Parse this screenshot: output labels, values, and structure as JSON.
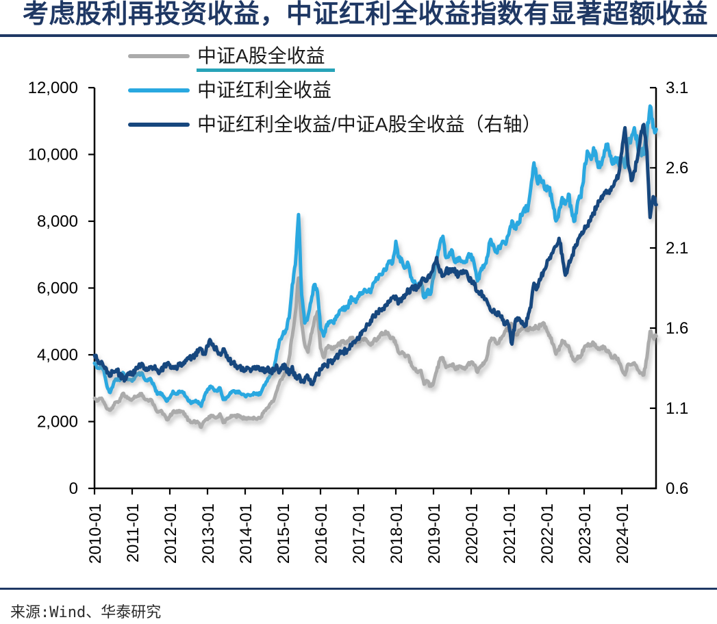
{
  "source": {
    "text": "来源:Wind、华泰研究"
  },
  "colors": {
    "title": "#1f3864",
    "rule": "#1f3864",
    "axis": "#000000",
    "legend_underline": "#27a3b8"
  },
  "chart_data": {
    "type": "line",
    "title": "考虑股利再投资收益，中证红利全收益指数有显著超额收益",
    "grid": false,
    "legend_position": "top-left",
    "x_start": "2010-01",
    "x_end": "2024-12",
    "freq": "monthly",
    "x_tick_labels": [
      "2010-01",
      "2011-01",
      "2012-01",
      "2013-01",
      "2014-01",
      "2015-01",
      "2016-01",
      "2017-01",
      "2018-01",
      "2019-01",
      "2020-01",
      "2021-01",
      "2022-01",
      "2023-01",
      "2024-01"
    ],
    "left_axis": {
      "min": 0,
      "max": 12000,
      "step": 2000,
      "tick_labels": [
        "0",
        "2,000",
        "4,000",
        "6,000",
        "8,000",
        "10,000",
        "12,000"
      ]
    },
    "right_axis": {
      "min": 0.6,
      "max": 3.1,
      "step": 0.5,
      "tick_labels": [
        "0.6",
        "1.1",
        "1.6",
        "2.1",
        "2.6",
        "3.1"
      ]
    },
    "series": [
      {
        "id": "csi-a-share-total-return",
        "name": "中证A股全收益",
        "color": "#ababab",
        "axis": "left",
        "underlined_in_legend": true,
        "values": [
          2700,
          2620,
          2690,
          2580,
          2380,
          2340,
          2480,
          2590,
          2610,
          2840,
          2740,
          2700,
          2660,
          2750,
          2790,
          2840,
          2680,
          2650,
          2660,
          2500,
          2290,
          2320,
          2230,
          2060,
          2150,
          2300,
          2270,
          2330,
          2300,
          2160,
          2040,
          1980,
          2010,
          1970,
          1830,
          2010,
          2060,
          2180,
          2140,
          2120,
          2230,
          1970,
          2060,
          2110,
          2180,
          2150,
          2190,
          2120,
          2080,
          2120,
          2090,
          2100,
          2090,
          2130,
          2310,
          2390,
          2540,
          2610,
          2900,
          3190,
          3340,
          3460,
          3900,
          4560,
          5250,
          6300,
          4950,
          4300,
          4080,
          4620,
          5000,
          5290,
          4200,
          3920,
          4220,
          4240,
          4170,
          4260,
          4310,
          4380,
          4350,
          4410,
          4520,
          4340,
          4380,
          4450,
          4490,
          4400,
          4290,
          4430,
          4480,
          4600,
          4620,
          4660,
          4570,
          4520,
          4310,
          4060,
          4090,
          3940,
          3980,
          3680,
          3580,
          3470,
          3530,
          3120,
          3220,
          3060,
          3160,
          3510,
          3830,
          3910,
          3620,
          3670,
          3720,
          3560,
          3660,
          3610,
          3570,
          3720,
          3780,
          3700,
          3480,
          3660,
          3720,
          3920,
          4420,
          4470,
          4360,
          4410,
          4560,
          4720,
          4770,
          4910,
          4620,
          4680,
          4780,
          4890,
          4730,
          4780,
          4820,
          4800,
          4870,
          4960,
          4760,
          4580,
          4320,
          4020,
          4140,
          4430,
          4320,
          4270,
          3960,
          3810,
          3960,
          3970,
          4210,
          4260,
          4310,
          4360,
          4210,
          4160,
          4260,
          4110,
          4060,
          3910,
          3960,
          3810,
          3560,
          3400,
          3720,
          3710,
          3760,
          3560,
          3450,
          3400,
          3920,
          4700,
          4520,
          4560
        ]
      },
      {
        "id": "csi-dividend-total-return",
        "name": "中证红利全收益",
        "color": "#29a8e0",
        "axis": "left",
        "underlined_in_legend": false,
        "values": [
          3750,
          3600,
          3680,
          3520,
          3050,
          2870,
          3120,
          3270,
          3230,
          3470,
          3310,
          3260,
          3210,
          3360,
          3410,
          3460,
          3270,
          3230,
          3260,
          3070,
          2820,
          2870,
          2760,
          2610,
          2710,
          2910,
          2820,
          2910,
          2900,
          2760,
          2610,
          2560,
          2610,
          2600,
          2460,
          2760,
          2960,
          3060,
          2960,
          2910,
          3010,
          2660,
          2710,
          2810,
          2910,
          2860,
          2910,
          2810,
          2760,
          2810,
          2800,
          2850,
          2810,
          2860,
          3090,
          3210,
          3390,
          3510,
          4000,
          4450,
          4600,
          4750,
          5100,
          6100,
          6700,
          8200,
          5800,
          4950,
          5150,
          5600,
          6100,
          5900,
          4800,
          4560,
          4910,
          5010,
          4960,
          5160,
          5310,
          5410,
          5360,
          5510,
          5710,
          5610,
          5760,
          5860,
          5960,
          5910,
          5860,
          6160,
          6260,
          6410,
          6510,
          6560,
          6810,
          6760,
          7400,
          6910,
          6810,
          6610,
          6710,
          6310,
          6210,
          6010,
          6210,
          5710,
          5910,
          5810,
          6310,
          6810,
          7310,
          7550,
          6910,
          7010,
          7110,
          6760,
          6910,
          6810,
          6760,
          6960,
          7010,
          6710,
          6210,
          6510,
          6610,
          6910,
          7400,
          7310,
          7110,
          7210,
          7400,
          7310,
          7610,
          8010,
          7810,
          7910,
          8210,
          8400,
          8310,
          9000,
          9750,
          9210,
          9310,
          9210,
          8910,
          9010,
          8510,
          8010,
          8310,
          8710,
          8510,
          8810,
          8310,
          8010,
          8610,
          8710,
          9510,
          10100,
          9910,
          10200,
          9810,
          9610,
          9910,
          10300,
          10100,
          9710,
          9910,
          9710,
          9910,
          9610,
          10400,
          10500,
          10800,
          10300,
          10100,
          10000,
          10600,
          11450,
          10800,
          10750
        ]
      },
      {
        "id": "dividend-to-a-share-ratio",
        "name": "中证红利全收益/中证A股全收益（右轴）",
        "color": "#17477e",
        "axis": "right",
        "underlined_in_legend": false,
        "values": [
          1.43,
          1.4,
          1.38,
          1.36,
          1.32,
          1.3,
          1.33,
          1.34,
          1.31,
          1.29,
          1.28,
          1.31,
          1.32,
          1.34,
          1.36,
          1.38,
          1.35,
          1.34,
          1.36,
          1.35,
          1.34,
          1.33,
          1.36,
          1.38,
          1.37,
          1.36,
          1.35,
          1.37,
          1.38,
          1.4,
          1.41,
          1.42,
          1.43,
          1.45,
          1.47,
          1.44,
          1.49,
          1.52,
          1.48,
          1.46,
          1.44,
          1.47,
          1.42,
          1.4,
          1.38,
          1.37,
          1.36,
          1.35,
          1.34,
          1.35,
          1.34,
          1.36,
          1.35,
          1.34,
          1.33,
          1.34,
          1.33,
          1.34,
          1.37,
          1.33,
          1.37,
          1.35,
          1.31,
          1.36,
          1.29,
          1.3,
          1.27,
          1.28,
          1.3,
          1.25,
          1.27,
          1.31,
          1.34,
          1.36,
          1.37,
          1.39,
          1.4,
          1.42,
          1.44,
          1.45,
          1.46,
          1.47,
          1.49,
          1.51,
          1.54,
          1.56,
          1.59,
          1.62,
          1.65,
          1.67,
          1.69,
          1.71,
          1.72,
          1.74,
          1.77,
          1.79,
          1.8,
          1.76,
          1.79,
          1.81,
          1.83,
          1.85,
          1.86,
          1.85,
          1.88,
          1.91,
          1.9,
          1.93,
          1.99,
          2.04,
          1.95,
          1.93,
          1.96,
          1.95,
          1.97,
          1.95,
          1.93,
          1.94,
          1.95,
          1.92,
          1.9,
          1.87,
          1.83,
          1.82,
          1.8,
          1.77,
          1.72,
          1.7,
          1.69,
          1.68,
          1.65,
          1.63,
          1.62,
          1.5,
          1.64,
          1.65,
          1.63,
          1.61,
          1.66,
          1.73,
          1.88,
          1.85,
          1.9,
          1.95,
          1.99,
          2.04,
          2.07,
          2.11,
          2.16,
          2.06,
          1.93,
          1.99,
          2.04,
          2.1,
          2.15,
          2.18,
          2.21,
          2.24,
          2.27,
          2.31,
          2.36,
          2.39,
          2.43,
          2.46,
          2.44,
          2.48,
          2.52,
          2.56,
          2.7,
          2.85,
          2.62,
          2.52,
          2.58,
          2.66,
          2.8,
          2.87,
          2.7,
          2.29,
          2.42,
          2.37
        ]
      }
    ]
  }
}
